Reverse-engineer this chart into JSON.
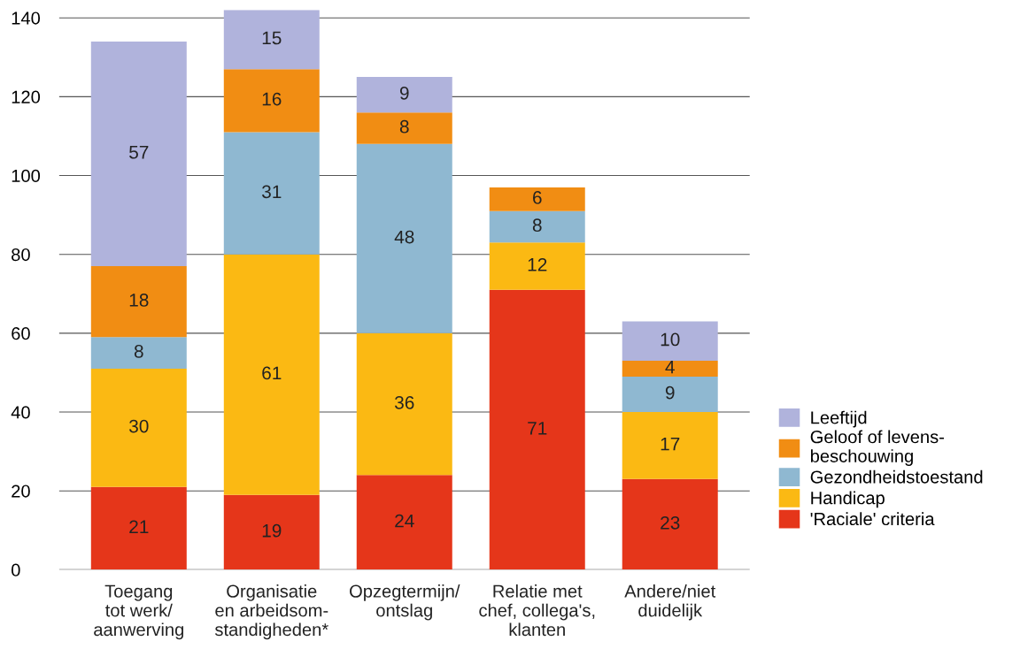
{
  "chart_data": {
    "type": "bar",
    "stacked": true,
    "data_labels": true,
    "grid": "y",
    "legend": "right",
    "categories": [
      "Toegang\ntot werk/\naanwerving",
      "Organisatie\nen arbeidsom-\nstandigheden*",
      "Opzegtermijn/\nontslag",
      "Relatie met\nchef, collega's,\nklanten",
      "Andere/niet\nduidelijk"
    ],
    "series": [
      {
        "name": "'Raciale' criteria",
        "color": "#e5361a",
        "values": [
          21,
          19,
          24,
          71,
          23
        ]
      },
      {
        "name": "Handicap",
        "color": "#fbb913",
        "values": [
          30,
          61,
          36,
          12,
          17
        ]
      },
      {
        "name": "Gezondheidstoestand",
        "color": "#8fb8d1",
        "values": [
          8,
          31,
          48,
          8,
          9
        ]
      },
      {
        "name": "Geloof of levens-\nbeschouwing",
        "color": "#f18d13",
        "values": [
          18,
          16,
          8,
          6,
          4
        ]
      },
      {
        "name": "Leeftijd",
        "color": "#b0b3dc",
        "values": [
          57,
          15,
          9,
          null,
          10
        ]
      }
    ],
    "ylim": [
      0,
      142
    ],
    "yticks": [
      0,
      20,
      40,
      60,
      80,
      100,
      120,
      140
    ]
  }
}
